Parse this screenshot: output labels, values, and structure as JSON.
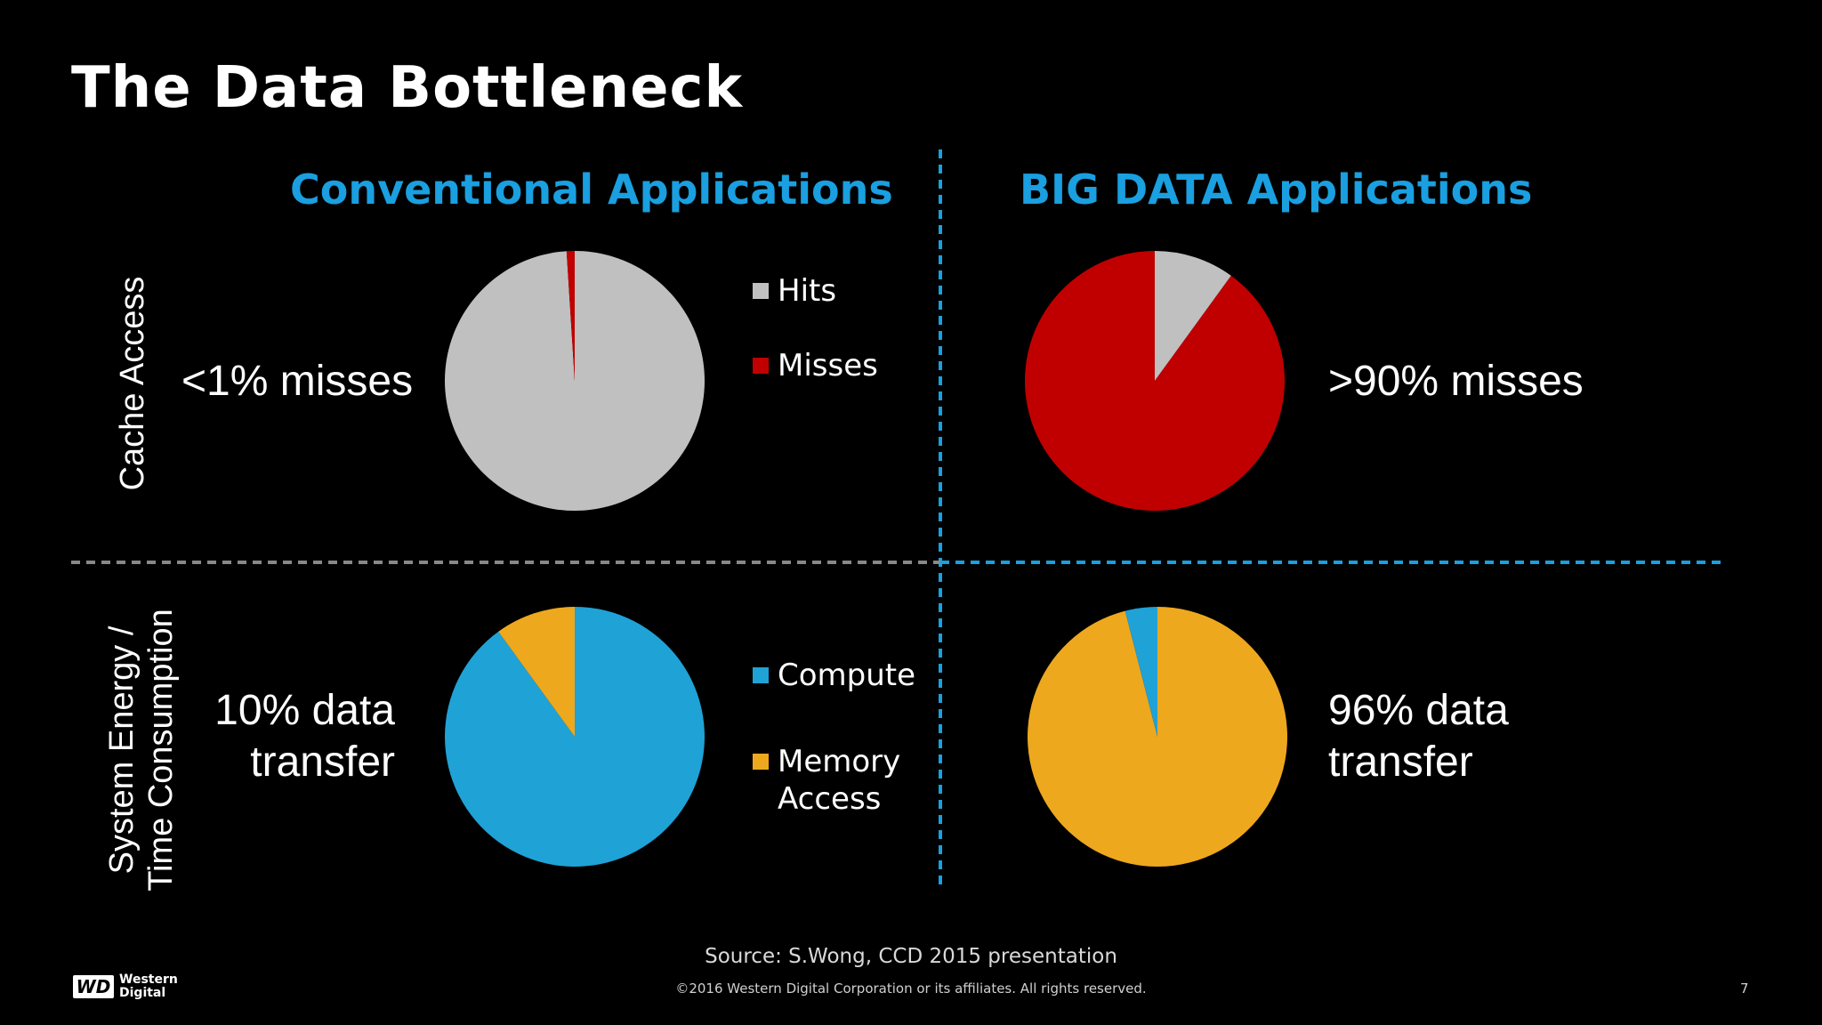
{
  "title": "The Data Bottleneck",
  "columns": {
    "left": "Conventional Applications",
    "right": "BIG DATA Applications"
  },
  "rows": {
    "top": "Cache Access",
    "bottom_line1": "System Energy /",
    "bottom_line2": "Time Consumption"
  },
  "texts": {
    "top_left": "<1% misses",
    "top_right": ">90% misses",
    "bottom_left_line1": "10% data",
    "bottom_left_line2": "transfer",
    "bottom_right_line1": "96% data",
    "bottom_right_line2": "transfer"
  },
  "legends": {
    "hits": "Hits",
    "misses": "Misses",
    "compute": "Compute",
    "memory_line1": "Memory",
    "memory_line2": "Access"
  },
  "colors": {
    "heading_blue": "#1a9fe0",
    "hits": "#c0c0c0",
    "misses": "#c00000",
    "compute": "#1fa2d6",
    "memory": "#eea81e",
    "divider_gray": "#888888",
    "divider_blue": "#1a9fe0"
  },
  "source": "Source: S.Wong, CCD 2015 presentation",
  "copyright": "©2016 Western Digital Corporation or its affiliates. All rights reserved.",
  "page_number": "7",
  "logo": {
    "mark": "WD",
    "line1": "Western",
    "line2": "Digital"
  },
  "chart_data": [
    {
      "type": "pie",
      "title": "Conventional Applications — Cache Access",
      "labels": [
        "Hits",
        "Misses"
      ],
      "values": [
        99,
        1
      ],
      "colors": [
        "#c0c0c0",
        "#c00000"
      ]
    },
    {
      "type": "pie",
      "title": "BIG DATA Applications — Cache Access",
      "labels": [
        "Hits",
        "Misses"
      ],
      "values": [
        10,
        90
      ],
      "colors": [
        "#c0c0c0",
        "#c00000"
      ]
    },
    {
      "type": "pie",
      "title": "Conventional Applications — System Energy / Time Consumption",
      "labels": [
        "Compute",
        "Memory Access"
      ],
      "values": [
        90,
        10
      ],
      "colors": [
        "#1fa2d6",
        "#eea81e"
      ]
    },
    {
      "type": "pie",
      "title": "BIG DATA Applications — System Energy / Time Consumption",
      "labels": [
        "Compute",
        "Memory Access"
      ],
      "values": [
        4,
        96
      ],
      "colors": [
        "#1fa2d6",
        "#eea81e"
      ]
    }
  ]
}
